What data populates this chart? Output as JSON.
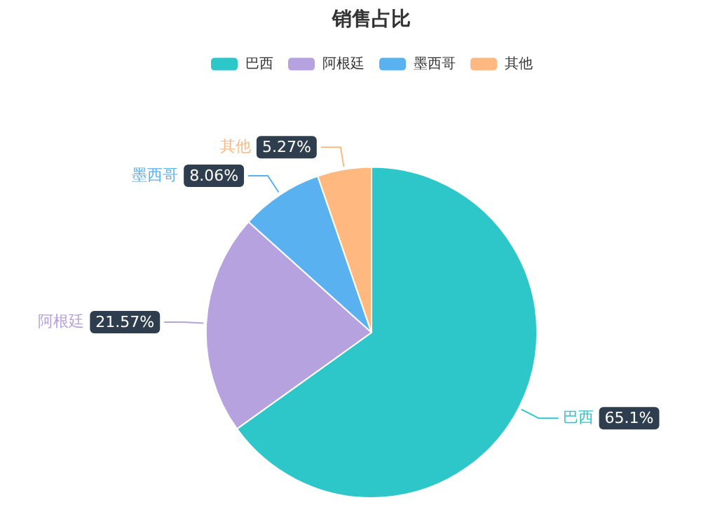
{
  "chart_data": {
    "type": "pie",
    "title": "销售占比",
    "categories": [
      "巴西",
      "阿根廷",
      "墨西哥",
      "其他"
    ],
    "values": [
      65.1,
      21.57,
      8.06,
      5.27
    ],
    "colors": [
      "#2ec7c9",
      "#b6a2de",
      "#5ab1ef",
      "#ffb980"
    ],
    "value_labels": [
      "65.1%",
      "21.57%",
      "8.06%",
      "5.27%"
    ],
    "legend": "top"
  }
}
